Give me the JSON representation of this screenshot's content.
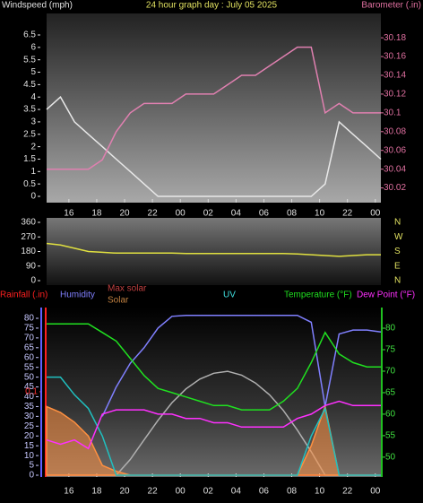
{
  "chart_data": [
    {
      "type": "line",
      "title": "24 hour graph day : July 05 2025",
      "y_label": "Windspeed (mph)",
      "y2_label": "Barometer (.in)",
      "x": [
        0,
        1,
        2,
        3,
        4,
        5,
        6,
        7,
        8,
        9,
        10,
        11,
        12,
        13,
        14,
        15,
        16,
        17,
        18,
        19,
        20,
        21,
        22,
        23,
        24
      ],
      "xlim": [
        0,
        24
      ],
      "xticks": [
        {
          "value": 1.6,
          "label": "16"
        },
        {
          "value": 3.6,
          "label": "18"
        },
        {
          "value": 5.6,
          "label": "20"
        },
        {
          "value": 7.6,
          "label": "22"
        },
        {
          "value": 9.6,
          "label": "00"
        },
        {
          "value": 11.6,
          "label": "02"
        },
        {
          "value": 13.6,
          "label": "04"
        },
        {
          "value": 15.6,
          "label": "06"
        },
        {
          "value": 17.6,
          "label": "08"
        },
        {
          "value": 19.6,
          "label": "10"
        },
        {
          "value": 21.6,
          "label": "22"
        },
        {
          "value": 23.6,
          "label": "00"
        }
      ],
      "ylim": [
        0,
        6.5
      ],
      "yticks": [
        0,
        0.5,
        1,
        1.5,
        2,
        2.5,
        3,
        3.5,
        4,
        4.5,
        5,
        5.5,
        6,
        6.5
      ],
      "y_color": "#e0e0e0",
      "y2lim": [
        30.011,
        30.183
      ],
      "y2ticks": [
        30.02,
        30.04,
        30.06,
        30.08,
        30.1,
        30.12,
        30.14,
        30.16,
        30.18
      ],
      "y2_color": "#e070a0",
      "series": [
        {
          "name": "Windspeed (mph)",
          "color": "#e8e8e8",
          "axis": "y",
          "values": [
            3.5,
            4,
            3,
            2.5,
            2,
            1.5,
            1,
            0.5,
            0,
            0,
            0,
            0,
            0,
            0,
            0,
            0,
            0,
            0,
            0,
            0,
            0.5,
            3,
            2.5,
            2,
            1.5
          ]
        },
        {
          "name": "Barometer (.in)",
          "color": "#e080b0",
          "axis": "y2",
          "values": [
            30.04,
            30.04,
            30.04,
            30.04,
            30.05,
            30.08,
            30.1,
            30.11,
            30.11,
            30.11,
            30.12,
            30.12,
            30.12,
            30.13,
            30.14,
            30.14,
            30.15,
            30.16,
            30.17,
            30.17,
            30.1,
            30.11,
            30.1,
            30.1,
            30.1
          ]
        }
      ]
    },
    {
      "type": "line",
      "compass_labels": [
        "N",
        "W",
        "S",
        "E",
        "N"
      ],
      "x": [
        0,
        1,
        2,
        3,
        4,
        5,
        6,
        7,
        8,
        9,
        10,
        11,
        12,
        13,
        14,
        15,
        16,
        17,
        18,
        19,
        20,
        21,
        22,
        23,
        24
      ],
      "xlim": [
        0,
        24
      ],
      "ylim": [
        0,
        360
      ],
      "yticks": [
        0,
        90,
        180,
        270,
        360
      ],
      "y_color": "#e0e0e0",
      "series": [
        {
          "color": "#e0e040",
          "axis": "y",
          "values": [
            230,
            220,
            200,
            180,
            175,
            170,
            170,
            170,
            170,
            170,
            168,
            168,
            168,
            168,
            168,
            168,
            168,
            168,
            165,
            160,
            155,
            150,
            155,
            160,
            160
          ]
        }
      ]
    },
    {
      "type": "line",
      "x": [
        0,
        1,
        2,
        3,
        4,
        5,
        6,
        7,
        8,
        9,
        10,
        11,
        12,
        13,
        14,
        15,
        16,
        17,
        18,
        19,
        20,
        21,
        22,
        23,
        24
      ],
      "xlim": [
        0,
        24
      ],
      "xticks": [
        {
          "value": 1.6,
          "label": "16"
        },
        {
          "value": 3.6,
          "label": "18"
        },
        {
          "value": 5.6,
          "label": "20"
        },
        {
          "value": 7.6,
          "label": "22"
        },
        {
          "value": 9.6,
          "label": "00"
        },
        {
          "value": 11.6,
          "label": "02"
        },
        {
          "value": 13.6,
          "label": "04"
        },
        {
          "value": 15.6,
          "label": "06"
        },
        {
          "value": 17.6,
          "label": "08"
        },
        {
          "value": 19.6,
          "label": "10"
        },
        {
          "value": 21.6,
          "label": "22"
        },
        {
          "value": 23.6,
          "label": "00"
        }
      ],
      "ylim": [
        0,
        80
      ],
      "yticks": [
        0,
        5,
        10,
        15,
        20,
        25,
        30,
        35,
        40,
        45,
        50,
        55,
        60,
        65,
        70,
        75,
        80
      ],
      "y_color": "#c8c8ff",
      "y2lim": [
        45.8,
        82.3
      ],
      "y2ticks": [
        50,
        55,
        60,
        65,
        70,
        75,
        80
      ],
      "y2_color": "#40e040",
      "y3lim": [
        0,
        0.188
      ],
      "y3ticks": [
        0.1
      ],
      "y3_color": "#ff3030",
      "series": [
        {
          "name": "Rainfall (.in)",
          "color": "#ff2020",
          "axis": "y3",
          "values": [
            0,
            0,
            0,
            0,
            0,
            0,
            0,
            0,
            0,
            0,
            0,
            0,
            0,
            0,
            0,
            0,
            0,
            0,
            0,
            0,
            0,
            0,
            0,
            0,
            0
          ]
        },
        {
          "name": "Humidity",
          "color": "#8080ff",
          "axis": "y",
          "values": [
            null,
            null,
            null,
            null,
            30,
            45,
            57,
            65,
            75,
            81,
            81.5,
            81.5,
            81.5,
            81.5,
            81.5,
            81.5,
            81.5,
            81.5,
            81.5,
            78,
            35,
            72,
            74,
            74,
            73
          ]
        },
        {
          "name": "Max solar",
          "color": "#b0b0b0",
          "label_color": "#c04040",
          "axis": "y",
          "values": [
            0,
            0,
            0,
            0,
            0,
            0,
            8,
            18,
            28,
            37,
            44,
            49,
            52,
            53,
            51,
            47,
            41,
            33,
            23,
            12,
            0,
            0,
            0,
            0,
            0
          ]
        },
        {
          "name": "Solar",
          "color": "#ff9040",
          "label_color": "#c08040",
          "axis": "y",
          "area": true,
          "values": [
            35,
            32,
            27,
            20,
            5,
            2,
            0,
            0,
            0,
            0,
            0,
            0,
            0,
            0,
            0,
            0,
            0,
            0,
            0,
            15,
            35,
            0,
            0,
            0,
            0
          ]
        },
        {
          "name": "UV",
          "color": "#20c0c0",
          "label_color": "#40e0e0",
          "axis": "y",
          "values": [
            50,
            50,
            41,
            34,
            20,
            0,
            0,
            0,
            0,
            0,
            0,
            0,
            0,
            0,
            0,
            0,
            0,
            0,
            0,
            20,
            34,
            0,
            0,
            0,
            0
          ]
        },
        {
          "name": "Temperature (°F)",
          "color": "#20e020",
          "axis": "y2",
          "values": [
            81,
            81,
            81,
            81,
            79,
            77,
            73,
            69,
            66,
            65,
            64,
            63,
            62,
            62,
            61,
            61,
            61,
            63,
            66,
            72,
            79,
            74,
            72,
            71,
            71
          ]
        },
        {
          "name": "Dew Point (°F)",
          "color": "#ff30ff",
          "axis": "y2",
          "values": [
            54,
            53,
            54,
            52,
            60,
            61,
            61,
            61,
            60,
            60,
            59,
            59,
            58,
            58,
            57,
            57,
            57,
            57,
            59,
            60,
            62,
            63,
            62,
            62,
            62
          ]
        }
      ]
    }
  ]
}
